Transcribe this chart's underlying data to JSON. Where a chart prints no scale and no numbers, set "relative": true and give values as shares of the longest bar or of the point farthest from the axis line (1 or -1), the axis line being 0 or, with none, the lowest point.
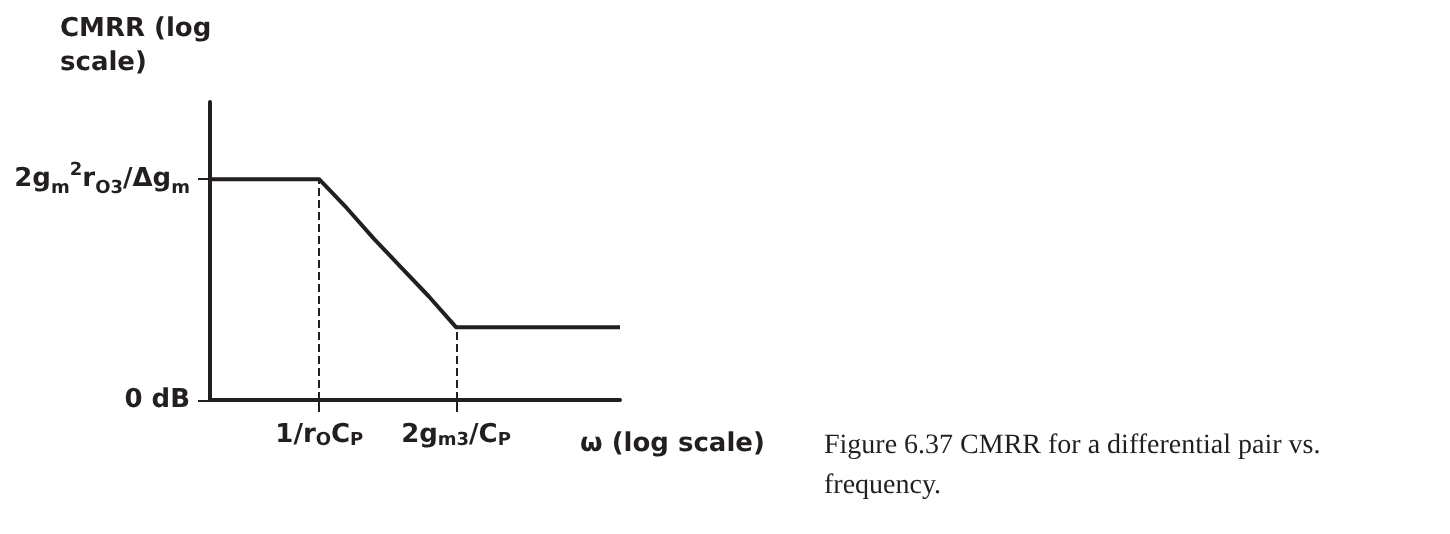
{
  "chart_data": {
    "type": "line",
    "relative": true,
    "color": "#231f20",
    "ylabel": "CMRR (log scale)",
    "xlabel": "ω (log scale)",
    "categories": [
      null,
      null,
      null,
      null,
      "1/r$_{O}$C$_{P}$",
      null,
      null,
      null,
      null,
      "2g$_{m3}$/C$_{P}$",
      null,
      null,
      null,
      null,
      null,
      null
    ],
    "values": [
      1,
      1,
      1,
      1,
      1,
      0.87,
      0.73,
      0.6,
      0.47,
      0.33,
      0.33,
      0.33,
      0.33,
      0.33,
      0.33,
      0.33
    ],
    "ref_lines": [
      {
        "axis": "x",
        "value": "1/r$_{O}$C$_{P}$",
        "line_style": "dashed"
      },
      {
        "axis": "x",
        "value": "2g$_{m3}$/C$_{P}$",
        "line_style": "dashed"
      }
    ],
    "annotations": [
      "2g$_{m}$$^{2}$r$_{O3}$/Δg$_{m}$",
      "0 dB",
      "Figure 6.37 CMRR for a differential pair vs. frequency."
    ],
    "grid": false,
    "marker": "none",
    "line_style": "solid"
  }
}
